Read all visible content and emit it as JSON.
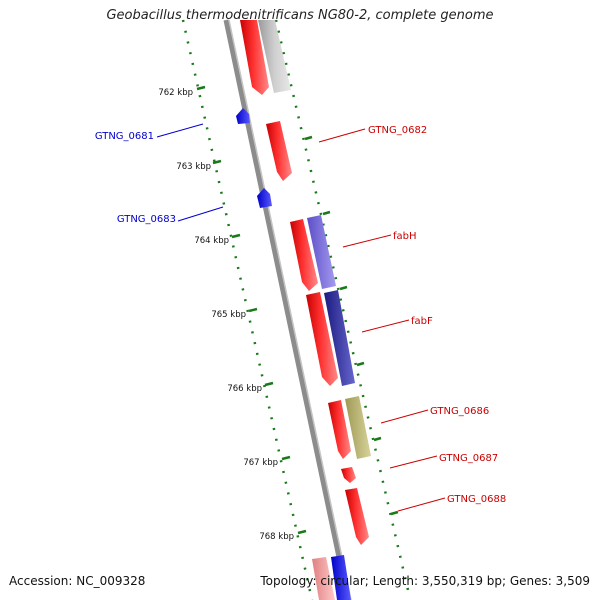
{
  "title": "Geobacillus thermodenitrificans NG80-2, complete genome",
  "accession": "Accession: NC_009328",
  "topology": "Topology: circular; Length: 3,550,319 bp; Genes: 3,509",
  "colors": {
    "forward_gene": "#ff0000",
    "reverse_gene": "#0000ff",
    "label_forward": "#cc0000",
    "label_reverse": "#0000cc",
    "tick": "#1a7a1a",
    "backbone": "#8c8c8c"
  },
  "scale_ticks": [
    {
      "label": "762 kbp"
    },
    {
      "label": "763 kbp"
    },
    {
      "label": "764 kbp"
    },
    {
      "label": "765 kbp"
    },
    {
      "label": "766 kbp"
    },
    {
      "label": "767 kbp"
    },
    {
      "label": "768 kbp"
    }
  ],
  "gene_labels": [
    {
      "id": "GTNG_0681",
      "text": "GTNG_0681",
      "strand": "reverse"
    },
    {
      "id": "GTNG_0683",
      "text": "GTNG_0683",
      "strand": "reverse"
    },
    {
      "id": "GTNG_0682",
      "text": "GTNG_0682",
      "strand": "forward"
    },
    {
      "id": "fabH",
      "text": "fabH",
      "strand": "forward"
    },
    {
      "id": "fabF",
      "text": "fabF",
      "strand": "forward"
    },
    {
      "id": "GTNG_0686",
      "text": "GTNG_0686",
      "strand": "forward"
    },
    {
      "id": "GTNG_0687",
      "text": "GTNG_0687",
      "strand": "forward"
    },
    {
      "id": "GTNG_0688",
      "text": "GTNG_0688",
      "strand": "forward"
    }
  ]
}
